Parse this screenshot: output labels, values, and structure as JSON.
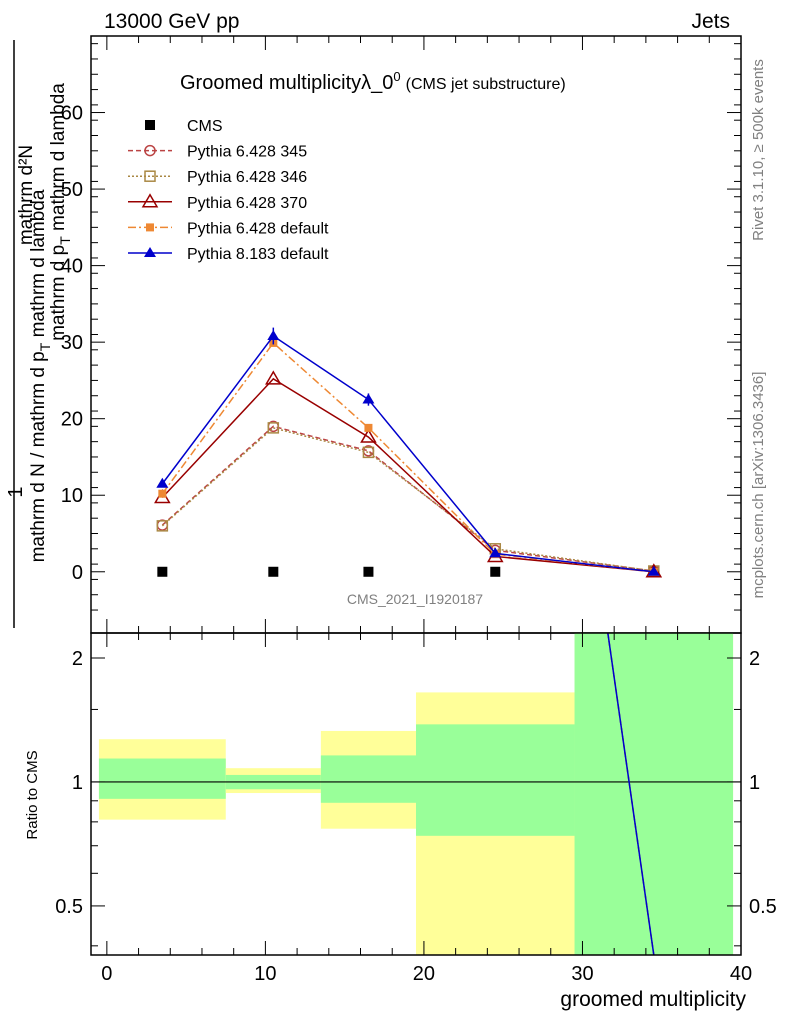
{
  "header": {
    "left": "13000 GeV pp",
    "right": "Jets"
  },
  "side": {
    "rivet": "Rivet 3.1.10, ≥ 500k events",
    "mcplots": "mcplots.cern.ch [arXiv:1306.3436]"
  },
  "watermark": "CMS_2021_I1920187",
  "colors": {
    "band_inner": "#99ff99",
    "band_outer": "#ffff99",
    "cms": "#000000",
    "py345": "#bb4444",
    "py346": "#aa8844",
    "py370": "#990000",
    "py6def": "#ee8833",
    "py8def": "#0000cc"
  },
  "chart_data": [
    {
      "type": "line",
      "title": "Groomed multiplicity",
      "title_symbol": "λ_0",
      "title_superscript": "0",
      "title_note": "(CMS jet substructure)",
      "ylabel_top": "mathrm d²N",
      "ylabel_main": "mathrm d N / mathrm d p_T mathrm d lambda",
      "ylabel_line1": "mathrm d p",
      "ylabel_line1_sub": "T",
      "ylabel_line1_rest": " mathrm d lambda",
      "ylabel_numerator": "1",
      "ylabel_denominator": "mathrm d N / mathrm d p",
      "ylabel_denominator_sub": "T",
      "ylabel_denominator_rest": " mathrm d lambda",
      "xlim": [
        -1,
        40
      ],
      "ylim": [
        -8,
        70
      ],
      "yticks": [
        0,
        10,
        20,
        30,
        40,
        50,
        60
      ],
      "ytick_labels": [
        "0",
        "10",
        "20",
        "30",
        "40",
        "50",
        "60"
      ],
      "series": [
        {
          "name": "CMS",
          "key": "cms",
          "marker": "square",
          "x": [
            3.5,
            10.5,
            16.5,
            24.5,
            34.5
          ],
          "values": [
            0,
            0,
            0,
            0,
            0
          ]
        },
        {
          "name": "Pythia 6.428 345",
          "key": "py345",
          "marker": "circle-open",
          "dash": "5,3",
          "x": [
            3.5,
            10.5,
            16.5,
            24.5,
            34.5
          ],
          "values": [
            6.1,
            19.0,
            15.8,
            2.8,
            0.1
          ]
        },
        {
          "name": "Pythia 6.428 346",
          "key": "py346",
          "marker": "square-open",
          "dash": "2,2",
          "x": [
            3.5,
            10.5,
            16.5,
            24.5,
            34.5
          ],
          "values": [
            6.0,
            18.8,
            15.6,
            3.0,
            0.1
          ]
        },
        {
          "name": "Pythia 6.428 370",
          "key": "py370",
          "marker": "triangle-open",
          "dash": "",
          "x": [
            3.5,
            10.5,
            16.5,
            24.5,
            34.5
          ],
          "values": [
            9.7,
            25.2,
            17.6,
            2.0,
            0.0
          ]
        },
        {
          "name": "Pythia 6.428 default",
          "key": "py6def",
          "marker": "square-filled",
          "dash": "8,3,2,3",
          "x": [
            3.5,
            10.5,
            16.5,
            24.5,
            34.5
          ],
          "values": [
            10.2,
            29.9,
            18.8,
            2.3,
            0.0
          ]
        },
        {
          "name": "Pythia 8.183 default",
          "key": "py8def",
          "marker": "triangle-filled",
          "dash": "",
          "x": [
            3.5,
            10.5,
            16.5,
            24.5,
            34.5
          ],
          "values": [
            11.5,
            30.8,
            22.5,
            2.4,
            0.0
          ]
        }
      ]
    },
    {
      "type": "area",
      "ylabel": "Ratio to CMS",
      "xlabel": "groomed multiplicity",
      "xlim": [
        -1,
        40
      ],
      "ylim": [
        0.38,
        2.3
      ],
      "yscale": "log",
      "xticks": [
        0,
        10,
        20,
        30,
        40
      ],
      "xtick_labels": [
        "0",
        "10",
        "20",
        "30",
        "40"
      ],
      "yticks": [
        0.5,
        1,
        2
      ],
      "ytick_labels": [
        "0.5",
        "1",
        "2"
      ],
      "ytick_labels_right": [
        "0.5",
        "1",
        "2"
      ],
      "bands": [
        {
          "x_range": [
            -0.5,
            7.5
          ],
          "inner": [
            0.91,
            1.14
          ],
          "outer": [
            0.81,
            1.27
          ]
        },
        {
          "x_range": [
            7.5,
            13.5
          ],
          "inner": [
            0.96,
            1.04
          ],
          "outer": [
            0.94,
            1.08
          ]
        },
        {
          "x_range": [
            13.5,
            19.5
          ],
          "inner": [
            0.89,
            1.16
          ],
          "outer": [
            0.77,
            1.33
          ]
        },
        {
          "x_range": [
            19.5,
            29.5
          ],
          "inner": [
            0.74,
            1.38
          ],
          "outer": [
            0.38,
            1.65
          ]
        },
        {
          "x_range": [
            29.5,
            39.5
          ],
          "inner": [
            0.38,
            2.3
          ],
          "outer": [
            0.38,
            2.3
          ]
        }
      ],
      "reference_line": 1,
      "mc_line": {
        "x": [
          31.6,
          34.5
        ],
        "values": [
          2.3,
          0.38
        ]
      }
    }
  ]
}
